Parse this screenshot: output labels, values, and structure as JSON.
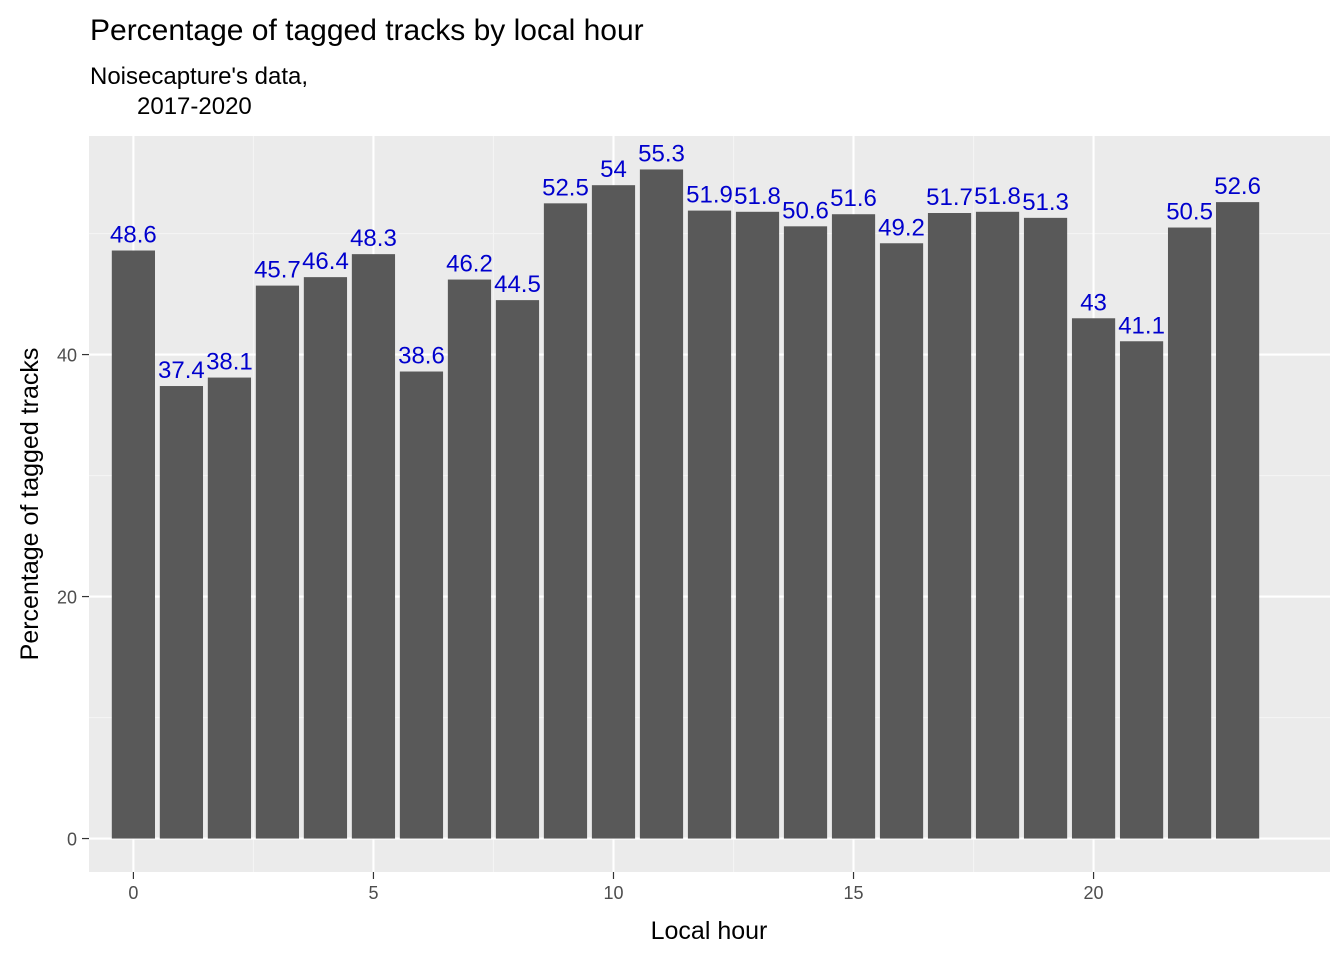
{
  "chart_data": {
    "type": "bar",
    "title": "Percentage of tagged tracks by local hour",
    "subtitle_lines": [
      "Noisecapture's data,",
      "2017-2020"
    ],
    "xlabel": "Local hour",
    "ylabel": "Percentage of tagged tracks",
    "x": [
      0,
      1,
      2,
      3,
      4,
      5,
      6,
      7,
      8,
      9,
      10,
      11,
      12,
      13,
      14,
      15,
      16,
      17,
      18,
      19,
      20,
      21,
      22,
      23
    ],
    "values": [
      48.6,
      37.4,
      38.1,
      45.7,
      46.4,
      48.3,
      38.6,
      46.2,
      44.5,
      52.5,
      54,
      55.3,
      51.9,
      51.8,
      50.6,
      51.6,
      49.2,
      51.7,
      51.8,
      51.3,
      43,
      41.1,
      50.5,
      52.6
    ],
    "labels": [
      "48.6",
      "37.4",
      "38.1",
      "45.7",
      "46.4",
      "48.3",
      "38.6",
      "46.2",
      "44.5",
      "52.5",
      "54",
      "55.3",
      "51.9",
      "51.8",
      "50.6",
      "51.6",
      "49.2",
      "51.7",
      "51.8",
      "51.3",
      "43",
      "41.1",
      "50.5",
      "52.6"
    ],
    "xlim": [
      -0.925,
      24.925
    ],
    "ylim": [
      -2.765,
      58.065
    ],
    "x_ticks": [
      0,
      5,
      10,
      15,
      20
    ],
    "x_tick_labels": [
      "0",
      "5",
      "10",
      "15",
      "20"
    ],
    "y_ticks": [
      0,
      20,
      40
    ],
    "y_tick_labels": [
      "0",
      "20",
      "40"
    ],
    "grid": true,
    "legend": "none",
    "colors": {
      "bar": "#595959",
      "panel": "#ebebeb",
      "grid_major": "#ffffff",
      "grid_minor": "#f4f4f4",
      "label": "#0000cd",
      "tick": "#333333"
    }
  }
}
